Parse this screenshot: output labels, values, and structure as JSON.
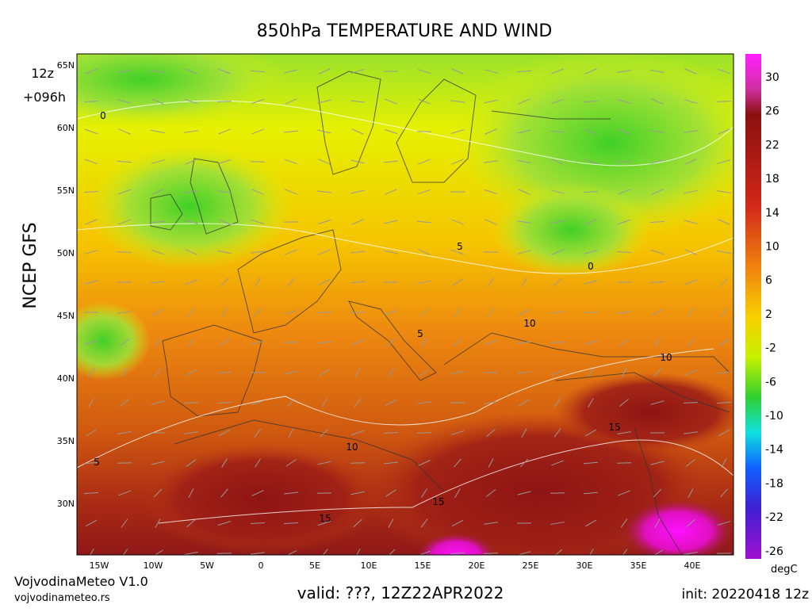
{
  "title": "850hPa TEMPERATURE AND WIND",
  "run": "12z",
  "lead": "+096h",
  "model": "NCEP GFS",
  "lat_labels": [
    "65N",
    "60N",
    "55N",
    "50N",
    "45N",
    "40N",
    "35N",
    "30N"
  ],
  "lon_labels": [
    "15W",
    "10W",
    "5W",
    "0",
    "5E",
    "10E",
    "15E",
    "20E",
    "25E",
    "30E",
    "35E",
    "40E"
  ],
  "colorbar": {
    "labels": [
      30,
      26,
      22,
      18,
      14,
      10,
      6,
      2,
      -2,
      -6,
      -10,
      -14,
      -18,
      -22,
      -26
    ],
    "unit": "degC"
  },
  "contour_labels": [
    "0",
    "0",
    "5",
    "5",
    "10",
    "10",
    "10",
    "15",
    "15",
    "15",
    "5"
  ],
  "footer": {
    "brand": "VojvodinaMeteo V1.0",
    "site": "vojvodinameteo.rs",
    "valid": "valid: ???, 12Z22APR2022",
    "init": "init: 20220418 12z"
  }
}
